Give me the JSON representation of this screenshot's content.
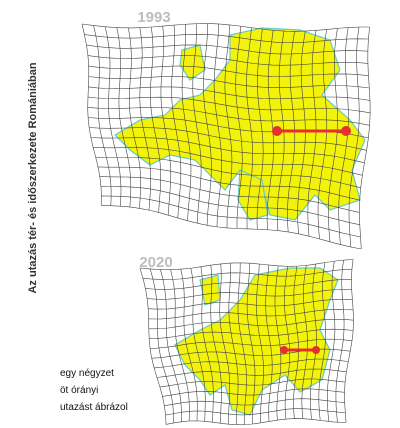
{
  "title": "Az utazás tér- és időszerkezete Romániában",
  "maps": [
    {
      "year": "1993"
    },
    {
      "year": "2020"
    }
  ],
  "legend": [
    "egy négyzet",
    "öt órányi",
    "utazást ábrázol"
  ]
}
